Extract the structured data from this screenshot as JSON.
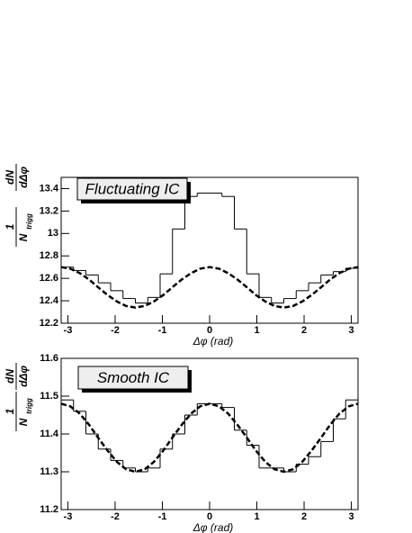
{
  "chart_data": [
    {
      "type": "histogram",
      "annotation": "Fluctuating IC",
      "xlabel": "Δφ (rad)",
      "ylabel": {
        "numerator": "1",
        "denominator": "N",
        "subscript": "trigg",
        "d_numerator": "dN",
        "d_denominator": "dΔφ"
      },
      "xlim": [
        -3.1416,
        3.1416
      ],
      "xticks": [
        -3,
        -2,
        -1,
        0,
        1,
        2,
        3
      ],
      "ylim": [
        12.2,
        13.5
      ],
      "yticks": [
        12.2,
        12.4,
        12.6,
        12.8,
        13,
        13.2,
        13.4
      ],
      "bins": [
        -3.1416,
        -2.8798,
        -2.618,
        -2.3562,
        -2.0944,
        -1.8326,
        -1.5708,
        -1.309,
        -1.0472,
        -0.7854,
        -0.5236,
        -0.2618,
        0,
        0.2618,
        0.5236,
        0.7854,
        1.0472,
        1.309,
        1.5708,
        1.8326,
        2.0944,
        2.3562,
        2.618,
        2.8798,
        3.1416
      ],
      "values": [
        12.7,
        12.67,
        12.63,
        12.56,
        12.49,
        12.42,
        12.38,
        12.43,
        12.64,
        13.04,
        13.33,
        13.36,
        13.36,
        13.33,
        13.04,
        12.64,
        12.43,
        12.38,
        12.42,
        12.49,
        12.56,
        12.63,
        12.66,
        12.69
      ],
      "color": "#000000",
      "fit": {
        "x": [
          -3.14,
          -2.95,
          -2.75,
          -2.55,
          -2.36,
          -2.16,
          -1.96,
          -1.77,
          -1.57,
          -1.37,
          -1.18,
          -0.98,
          -0.79,
          -0.59,
          -0.39,
          -0.2,
          0,
          0.2,
          0.39,
          0.59,
          0.79,
          0.98,
          1.18,
          1.37,
          1.57,
          1.77,
          1.96,
          2.16,
          2.36,
          2.55,
          2.75,
          2.95,
          3.14
        ],
        "values": [
          12.7,
          12.686,
          12.647,
          12.589,
          12.52,
          12.451,
          12.393,
          12.354,
          12.34,
          12.354,
          12.393,
          12.451,
          12.52,
          12.589,
          12.647,
          12.686,
          12.7,
          12.686,
          12.647,
          12.589,
          12.52,
          12.451,
          12.393,
          12.354,
          12.34,
          12.354,
          12.393,
          12.451,
          12.52,
          12.589,
          12.647,
          12.686,
          12.7
        ],
        "color": "#000000",
        "dashed": true
      }
    },
    {
      "type": "histogram",
      "annotation": "Smooth IC",
      "xlabel": "Δφ (rad)",
      "ylabel": {
        "numerator": "1",
        "denominator": "N",
        "subscript": "trigg",
        "d_numerator": "dN",
        "d_denominator": "dΔφ"
      },
      "xlim": [
        -3.1416,
        3.1416
      ],
      "xticks": [
        -3,
        -2,
        -1,
        0,
        1,
        2,
        3
      ],
      "ylim": [
        11.2,
        11.6
      ],
      "yticks": [
        11.2,
        11.3,
        11.4,
        11.5,
        11.6
      ],
      "bins": [
        -3.1416,
        -2.8798,
        -2.618,
        -2.3562,
        -2.0944,
        -1.8326,
        -1.5708,
        -1.309,
        -1.0472,
        -0.7854,
        -0.5236,
        -0.2618,
        0,
        0.2618,
        0.5236,
        0.7854,
        1.0472,
        1.309,
        1.5708,
        1.8326,
        2.0944,
        2.3562,
        2.618,
        2.8798,
        3.1416
      ],
      "values": [
        11.49,
        11.46,
        11.4,
        11.36,
        11.33,
        11.31,
        11.3,
        11.31,
        11.36,
        11.4,
        11.45,
        11.48,
        11.48,
        11.47,
        11.41,
        11.37,
        11.31,
        11.31,
        11.3,
        11.32,
        11.34,
        11.38,
        11.44,
        11.49
      ],
      "color": "#000000",
      "fit": {
        "x": [
          -3.14,
          -2.95,
          -2.75,
          -2.55,
          -2.36,
          -2.16,
          -1.96,
          -1.77,
          -1.57,
          -1.37,
          -1.18,
          -0.98,
          -0.79,
          -0.59,
          -0.39,
          -0.2,
          0,
          0.2,
          0.39,
          0.59,
          0.79,
          0.98,
          1.18,
          1.37,
          1.57,
          1.77,
          1.96,
          2.16,
          2.36,
          2.55,
          2.75,
          2.95,
          3.14
        ],
        "values": [
          11.48,
          11.473,
          11.454,
          11.424,
          11.39,
          11.356,
          11.326,
          11.307,
          11.3,
          11.307,
          11.326,
          11.356,
          11.39,
          11.424,
          11.454,
          11.473,
          11.48,
          11.473,
          11.454,
          11.424,
          11.39,
          11.356,
          11.326,
          11.307,
          11.3,
          11.307,
          11.326,
          11.356,
          11.39,
          11.424,
          11.454,
          11.473,
          11.48
        ],
        "color": "#000000",
        "dashed": true
      }
    }
  ]
}
